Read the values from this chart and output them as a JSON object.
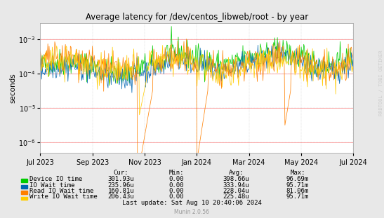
{
  "title": "Average latency for /dev/centos_libweb/root - by year",
  "ylabel": "seconds",
  "fig_bg_color": "#E8E8E8",
  "plot_bg_color": "#FFFFFF",
  "watermark": "RRDTOOL / TOBI OETIKER",
  "munin_version": "Munin 2.0.56",
  "x_tick_labels": [
    "Jul 2023",
    "Sep 2023",
    "Nov 2023",
    "Jan 2024",
    "Mar 2024",
    "May 2024",
    "Jul 2024"
  ],
  "ylim_min": 5e-07,
  "ylim_max": 0.003,
  "series": [
    {
      "name": "Device IO time",
      "color": "#00CC00"
    },
    {
      "name": "IO Wait time",
      "color": "#0066B3"
    },
    {
      "name": "Read IO Wait time",
      "color": "#FF8000"
    },
    {
      "name": "Write IO Wait time",
      "color": "#FFCC00"
    }
  ],
  "legend_headers": [
    "Cur:",
    "Min:",
    "Avg:",
    "Max:"
  ],
  "legend_rows": [
    [
      "Device IO time",
      "301.93u",
      "0.00",
      "398.66u",
      "96.69m"
    ],
    [
      "IO Wait time",
      "235.96u",
      "0.00",
      "333.94u",
      "95.71m"
    ],
    [
      "Read IO Wait time",
      "160.81u",
      "0.00",
      "228.04u",
      "81.06m"
    ],
    [
      "Write IO Wait time",
      "206.43u",
      "0.00",
      "225.48u",
      "95.71m"
    ]
  ],
  "last_update": "Last update: Sat Aug 10 20:40:06 2024"
}
